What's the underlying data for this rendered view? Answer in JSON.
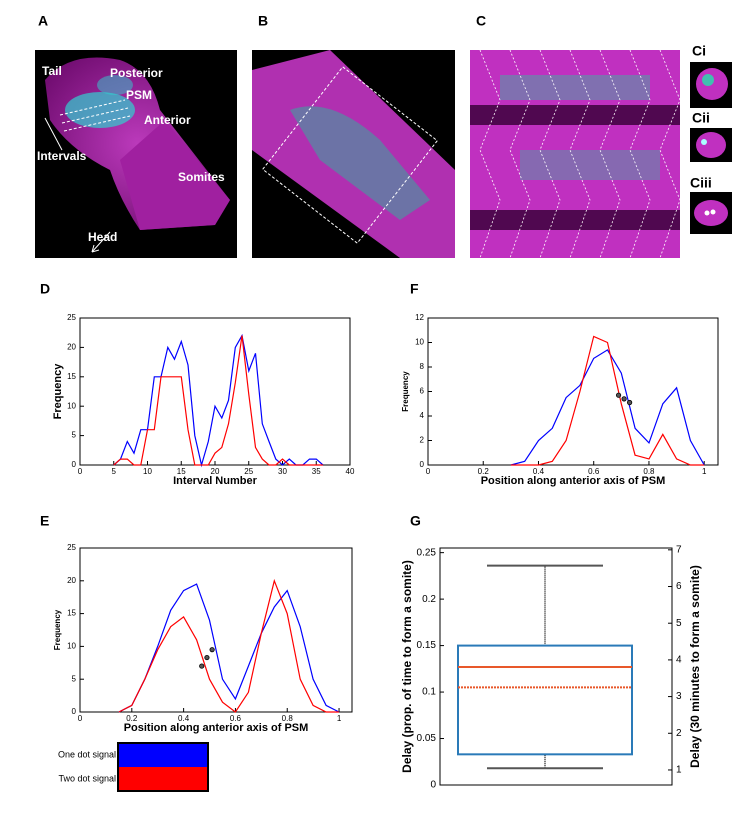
{
  "panels": {
    "A": "A",
    "B": "B",
    "C": "C",
    "Ci": "Ci",
    "Cii": "Cii",
    "Ciii": "Ciii",
    "tail": "Tail",
    "posterior": "Posterior",
    "psm": "PSM",
    "anterior": "Anterior",
    "intervals": "Intervals",
    "somites": "Somites",
    "head": "Head"
  },
  "chart_data": [
    {
      "type": "line",
      "panel": "D",
      "xlabel": "Interval Number",
      "ylabel": "Frequency",
      "xlim": [
        0,
        40
      ],
      "xticks": [
        0,
        5,
        10,
        15,
        20,
        25,
        30,
        35,
        40
      ],
      "ylim": [
        0,
        25
      ],
      "yticks": [
        0,
        5,
        10,
        15,
        20,
        25
      ],
      "x": [
        5,
        6,
        7,
        8,
        9,
        10,
        11,
        12,
        13,
        14,
        15,
        16,
        17,
        18,
        19,
        20,
        21,
        22,
        23,
        24,
        25,
        26,
        27,
        28,
        29,
        30,
        31,
        32,
        33,
        34,
        35,
        36
      ],
      "series": [
        {
          "color": "#0000ff",
          "values": [
            0,
            1,
            4,
            2,
            6,
            6,
            15,
            15,
            20,
            18,
            21,
            17,
            5,
            0,
            4,
            10,
            8,
            11,
            20,
            22,
            16,
            19,
            7,
            4,
            1,
            0,
            1,
            0,
            0,
            1,
            1,
            0
          ]
        },
        {
          "color": "#ff0000",
          "values": [
            0,
            1,
            1,
            0,
            0,
            6,
            6,
            15,
            15,
            15,
            15,
            6,
            0,
            0,
            0,
            2,
            3,
            7,
            14,
            22,
            12,
            3,
            1,
            0,
            0,
            1,
            0,
            0,
            0,
            0,
            0,
            0
          ]
        }
      ]
    },
    {
      "type": "line",
      "panel": "F",
      "xlabel": "Position along anterior axis of PSM",
      "ylabel": "Frequency",
      "xlim": [
        0,
        1.05
      ],
      "xticks": [
        0,
        0.2,
        0.4,
        0.6,
        0.8,
        1
      ],
      "ylim": [
        0,
        12
      ],
      "yticks": [
        0,
        2,
        4,
        6,
        8,
        10,
        12
      ],
      "x": [
        0.3,
        0.35,
        0.4,
        0.45,
        0.5,
        0.55,
        0.6,
        0.65,
        0.7,
        0.75,
        0.8,
        0.85,
        0.9,
        0.95,
        1.0
      ],
      "series": [
        {
          "color": "#0000ff",
          "values": [
            0,
            0.3,
            2,
            3,
            5.5,
            6.5,
            8.7,
            9.4,
            7.5,
            3,
            1.8,
            5,
            6.3,
            2,
            0
          ]
        },
        {
          "color": "#ff0000",
          "values": [
            0,
            0,
            0,
            0.3,
            2,
            6,
            10.5,
            10,
            5,
            0.8,
            0.5,
            2.5,
            0.5,
            0,
            0
          ]
        }
      ],
      "points": {
        "color": "#555555",
        "x": [
          0.69,
          0.71,
          0.73
        ],
        "y": [
          5.7,
          5.4,
          5.1
        ]
      }
    },
    {
      "type": "line",
      "panel": "E",
      "xlabel": "Position along anterior axis of PSM",
      "ylabel": "Frequency",
      "xlim": [
        0,
        1.05
      ],
      "xticks": [
        0,
        0.2,
        0.4,
        0.6,
        0.8,
        1
      ],
      "ylim": [
        0,
        25
      ],
      "yticks": [
        0,
        5,
        10,
        15,
        20,
        25
      ],
      "x": [
        0.15,
        0.2,
        0.25,
        0.3,
        0.35,
        0.4,
        0.45,
        0.5,
        0.55,
        0.6,
        0.65,
        0.7,
        0.75,
        0.8,
        0.85,
        0.9,
        0.95,
        1.0
      ],
      "series": [
        {
          "name": "One dot signal",
          "color": "#0000ff",
          "values": [
            0,
            1,
            5,
            10,
            15.5,
            18.5,
            19.5,
            14,
            5,
            2,
            7,
            12,
            16,
            18.5,
            13,
            5,
            1,
            0
          ]
        },
        {
          "name": "Two dot signal",
          "color": "#ff0000",
          "values": [
            0,
            1,
            5,
            9.5,
            13,
            14.5,
            11,
            5,
            1.5,
            0,
            3,
            12,
            20,
            15,
            5,
            1,
            0,
            0
          ]
        }
      ],
      "points": {
        "color": "#555555",
        "x": [
          0.47,
          0.49,
          0.51
        ],
        "y": [
          7,
          8.3,
          9.5
        ]
      }
    },
    {
      "type": "box",
      "panel": "G",
      "ylabel": "Delay (prop. of time to form a somite)",
      "y2label": "Delay (30 minutes to form a somite)",
      "ylim": [
        0,
        0.255
      ],
      "yticks": [
        0,
        0.05,
        0.1,
        0.15,
        0.2,
        0.25
      ],
      "y2lim": [
        0.59,
        7.05
      ],
      "y2ticks": [
        1,
        2,
        3,
        4,
        5,
        6,
        7
      ],
      "box": {
        "whislo": 0.018,
        "q1": 0.033,
        "median": 0.127,
        "mean": 0.105,
        "q3": 0.15,
        "whishi": 0.236
      },
      "box_color": "#2a7ab8",
      "median_color": "#e8582a",
      "whisker_color": "#555555"
    }
  ]
}
